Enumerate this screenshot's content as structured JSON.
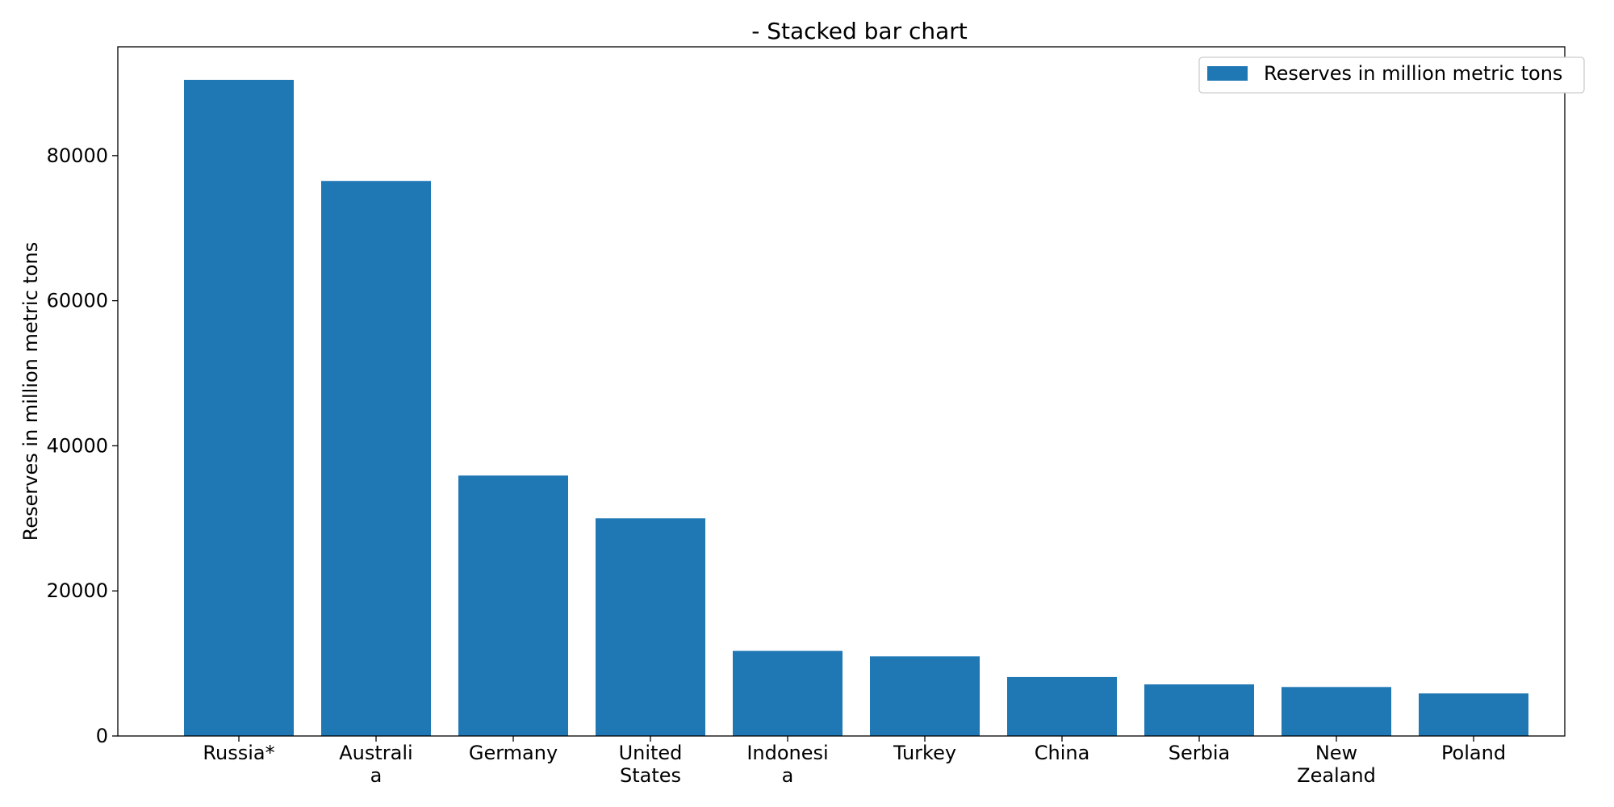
{
  "chart_data": {
    "type": "bar",
    "title": "- Stacked bar chart",
    "xlabel": "",
    "ylabel": "Reserves in million metric tons",
    "categories": [
      [
        "Russia*"
      ],
      [
        "Australi",
        "a"
      ],
      [
        "Germany"
      ],
      [
        "United",
        "States"
      ],
      [
        "Indonesi",
        "a"
      ],
      [
        "Turkey"
      ],
      [
        "China"
      ],
      [
        "Serbia"
      ],
      [
        "New",
        "Zealand"
      ],
      [
        "Poland"
      ]
    ],
    "series": [
      {
        "name": "Reserves in million metric tons",
        "color": "#1f77b4",
        "values": [
          90447,
          76508,
          35900,
          30003,
          11728,
          10975,
          8128,
          7112,
          6750,
          5865
        ]
      }
    ],
    "ylim": [
      0,
      95000
    ],
    "yticks": [
      0,
      20000,
      40000,
      60000,
      80000
    ],
    "grid": false,
    "legend_position": "top-right"
  }
}
